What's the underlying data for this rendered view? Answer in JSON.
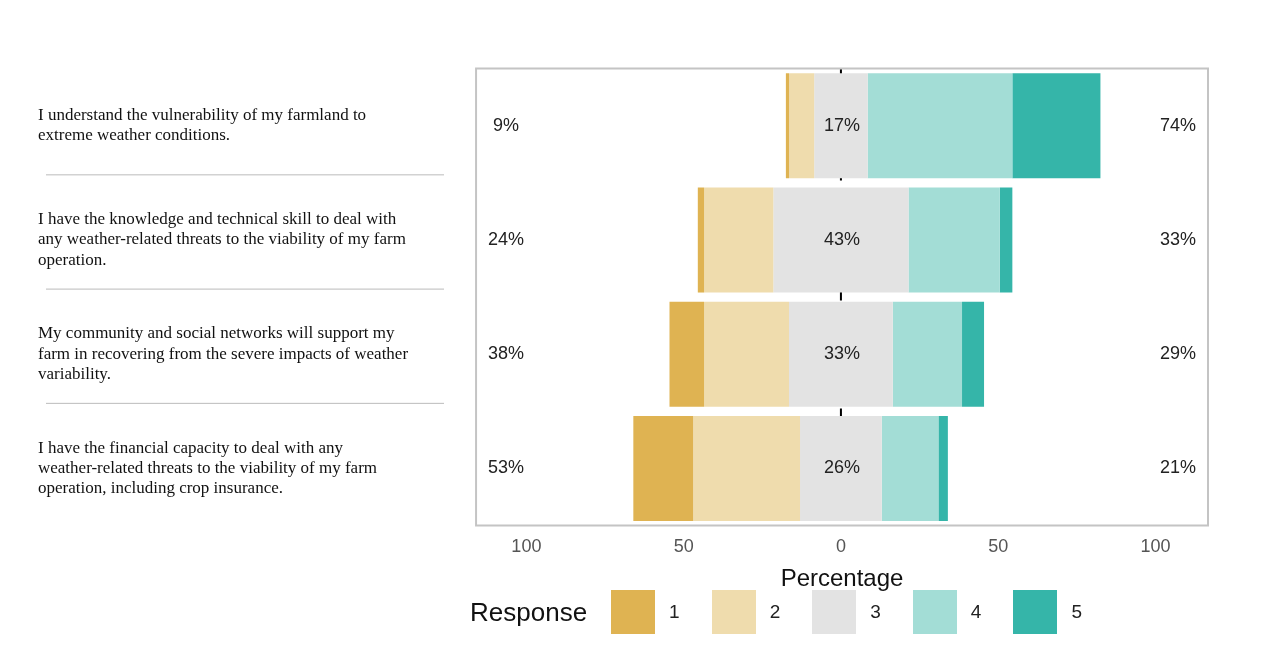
{
  "chart_data": {
    "type": "bar",
    "orientation": "horizontal",
    "xlabel": "Percentage",
    "legend_title": "Response",
    "legend": "bottom",
    "categories": [
      "I understand the vulnerability of my farmland to extreme weather conditions.",
      "I have the knowledge and technical skill to deal with any weather-related threats to the viability of my farm operation.",
      "My community and social networks will support my farm in recovering from the severe impacts of weather variability.",
      "I have the financial capacity to deal with any weather-related threats to the viability of my farm operation, including crop insurance."
    ],
    "series": [
      {
        "name": "1",
        "color": "#dfb352",
        "values": [
          1,
          2,
          11,
          19
        ],
        "base": [
          -17.5,
          -45.5,
          -54.5,
          -66
        ]
      },
      {
        "name": "2",
        "color": "#efdcad",
        "values": [
          8,
          22,
          27,
          34
        ],
        "base": [
          -16.5,
          -43.5,
          -43.5,
          -47
        ]
      },
      {
        "name": "3",
        "color": "#e3e3e3",
        "values": [
          17,
          43,
          33,
          26
        ],
        "base": [
          -8.5,
          -21.5,
          -16.5,
          -13
        ]
      },
      {
        "name": "4",
        "color": "#a3ddd6",
        "values": [
          46,
          29,
          22,
          18
        ],
        "base": [
          8.5,
          21.5,
          16.5,
          13
        ]
      },
      {
        "name": "5",
        "color": "#35b5a9",
        "values": [
          28,
          4,
          7,
          3
        ],
        "base": [
          54.5,
          50.5,
          38.5,
          31
        ]
      }
    ],
    "xlim": [
      -116,
      116.7
    ],
    "xticks": [
      {
        "value": -100,
        "label": "100"
      },
      {
        "value": -50,
        "label": "50"
      },
      0,
      50,
      100
    ],
    "ref_lines": [
      {
        "axis": "x",
        "value": 0,
        "color": "#000000",
        "line_style": "dashed"
      }
    ],
    "annotations": [
      "9%",
      "17%",
      "74%",
      "24%",
      "43%",
      "33%",
      "38%",
      "33%",
      "29%",
      "53%",
      "26%",
      "21%"
    ]
  }
}
